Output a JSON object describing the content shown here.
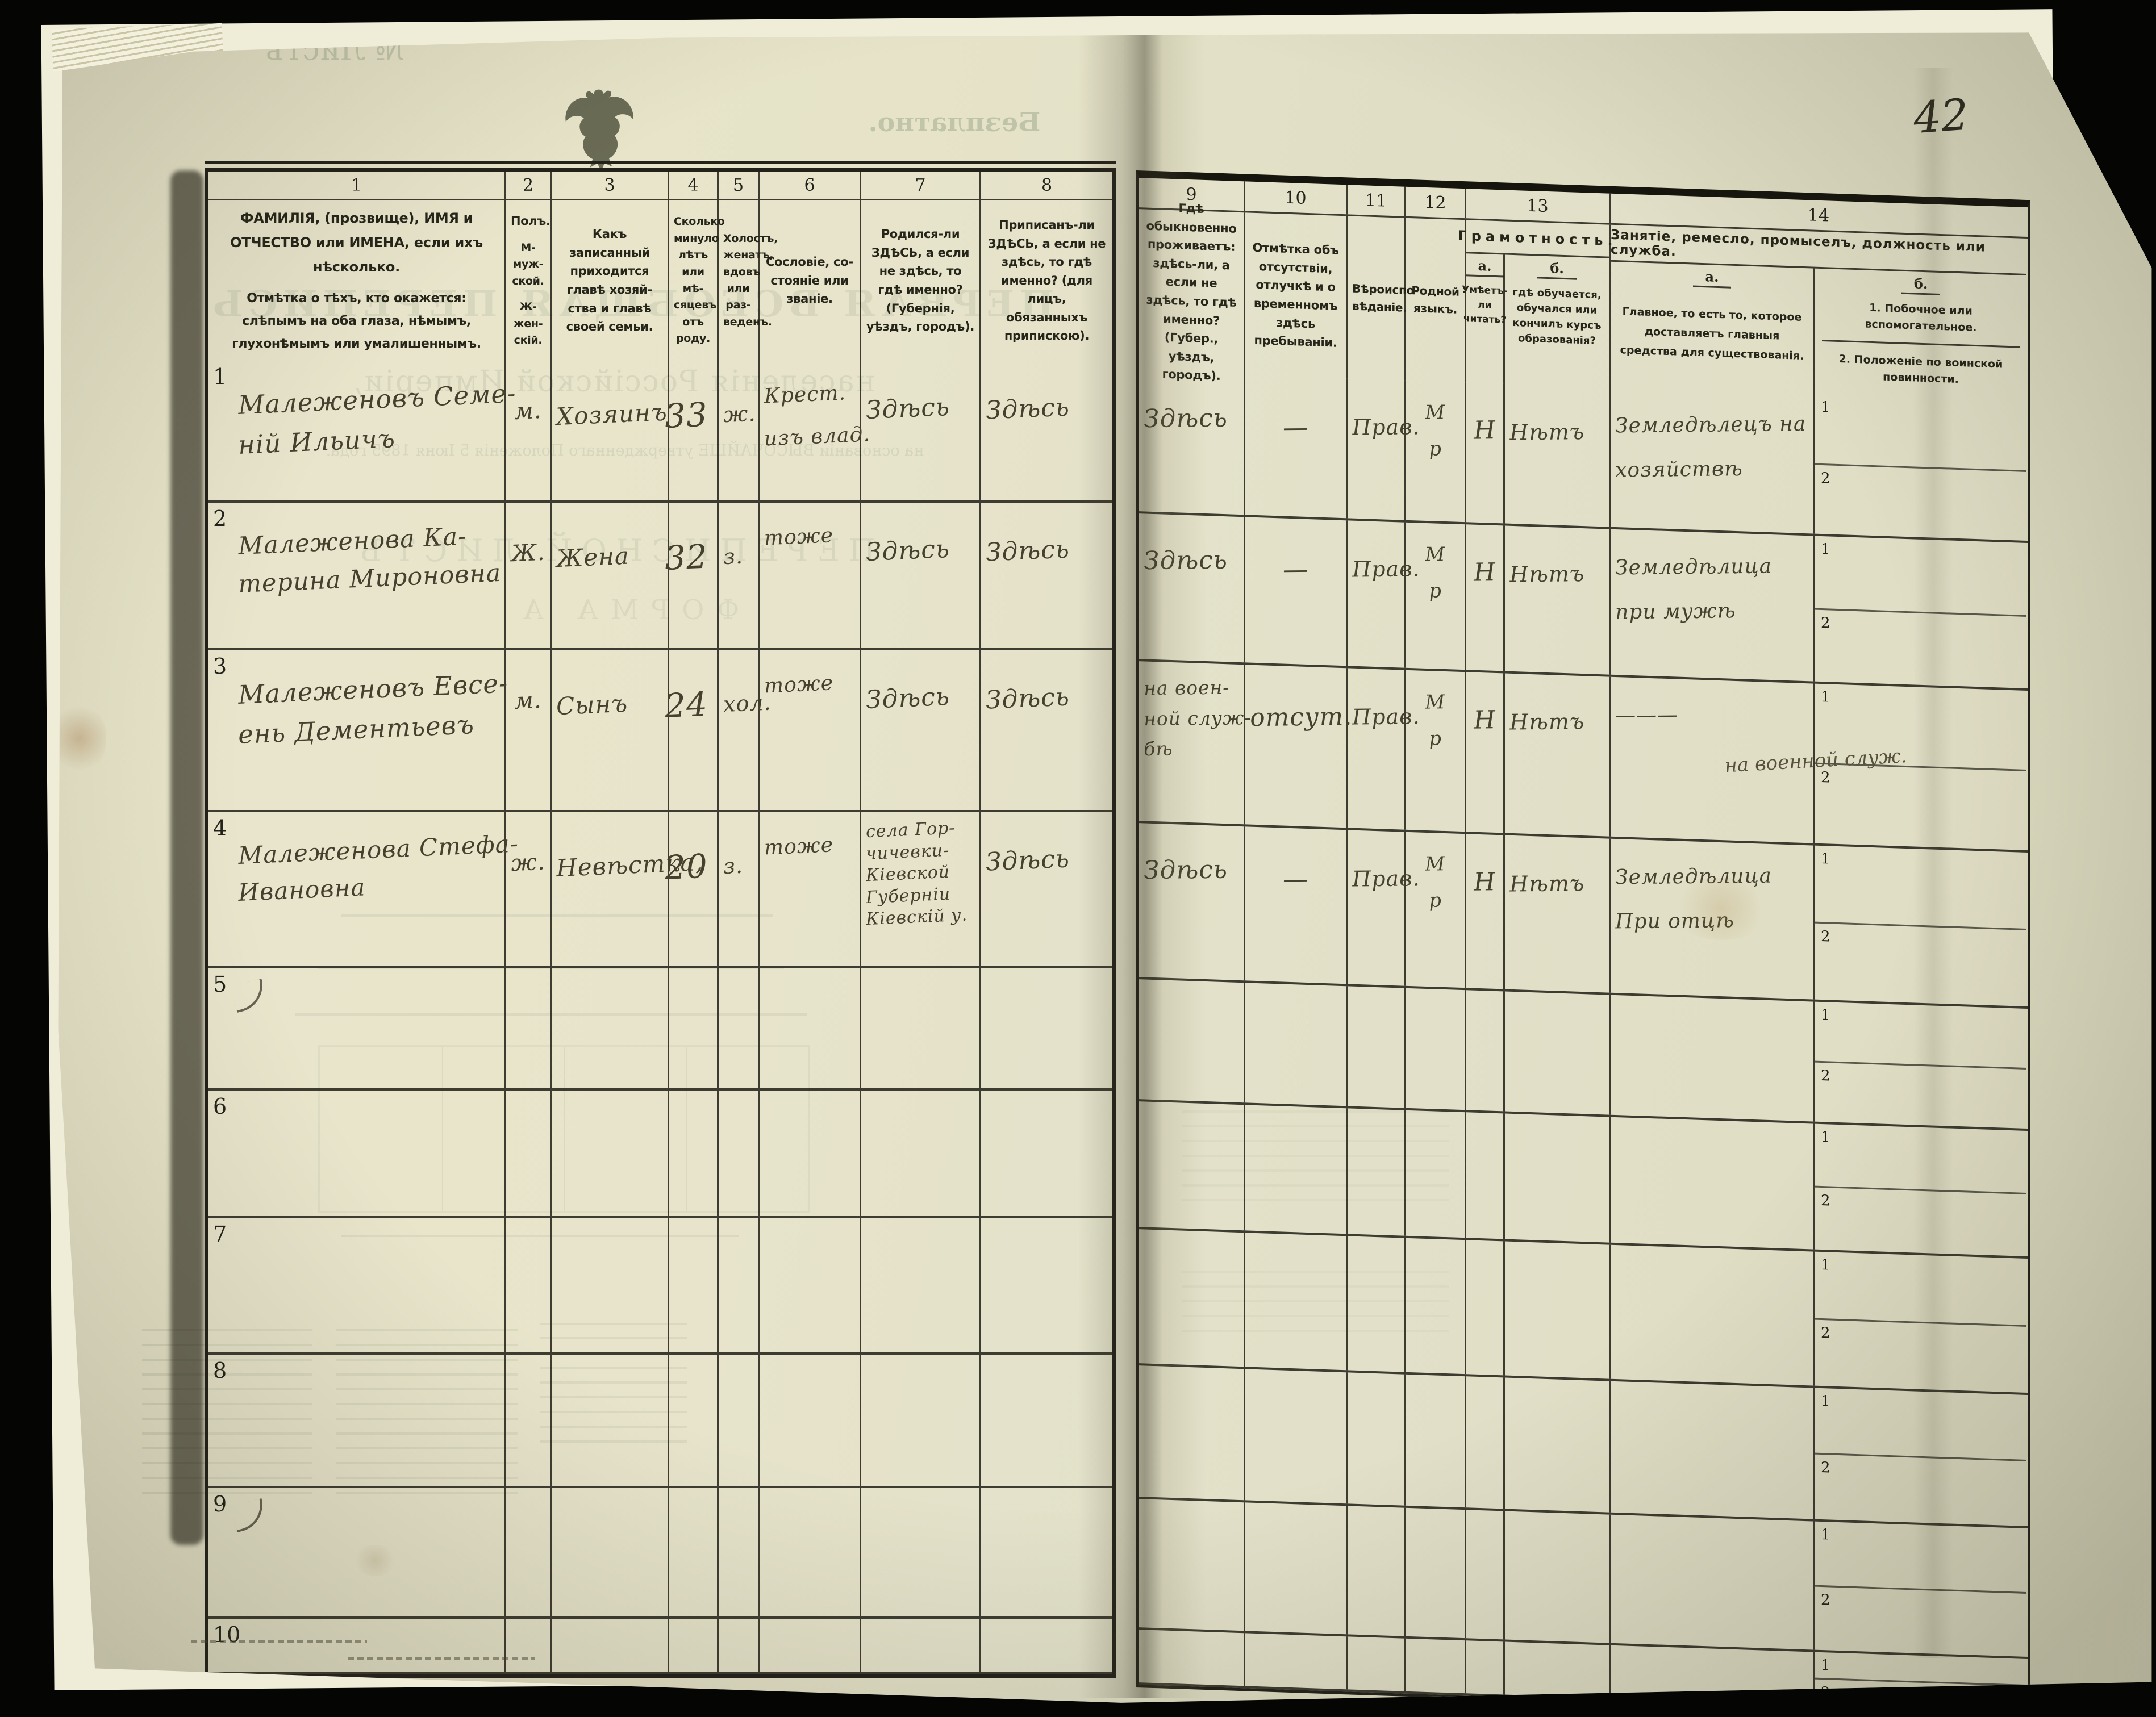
{
  "page": {
    "number": "42"
  },
  "ghost": {
    "free_label": "Безплатно.",
    "sheet_label": "№ Листъ",
    "title1": "ПЕРВАЯ ВСЕОБЩАЯ ПЕРЕПИСЬ",
    "title2": "населенія Россійской Имперіи,",
    "title3": "на основаніи ВЫСОЧАЙШЕ утвержденнаго Положенія 5 Іюня 1895 года.",
    "title4": "ПЕРЕПИСНОЙ ЛИСТЪ",
    "title5": "ФОРМА А"
  },
  "table": {
    "col_numbers": [
      "1",
      "2",
      "3",
      "4",
      "5",
      "6",
      "7",
      "8",
      "9",
      "10",
      "11",
      "12",
      "13",
      "14"
    ],
    "sub1": "1",
    "sub2": "2",
    "headers": {
      "c1": "ФАМИЛІЯ, (прозвище), ИМЯ и ОТЧЕСТВО или ИМЕНА, если ихъ нѣсколько.",
      "c1b": "Отмѣтка о тѣхъ, кто окажется: слѣпымъ на оба глаза, нѣмымъ, глухонѣмымъ или умалишеннымъ.",
      "c2": [
        "Полъ.",
        "М-муж-ской.",
        "Ж-жен-скій."
      ],
      "c3": "Какъ записанный при­ходится главѣ хозяй­ства и главѣ своей семьи.",
      "c4": "Сколько минуло лѣтъ или мѣ­сяцевъ отъ роду.",
      "c5": "Холостъ, женатъ, вдовъ или раз­веденъ.",
      "c6": "Сословіе, со­стояніе или зва­ніе.",
      "c7": "Родился-ли ЗДѢСЬ, а если не здѣсь, то гдѣ именно? (Губернія, уѣздъ, городъ).",
      "c8": "Приписанъ-ли ЗДѢСЬ, а если не здѣсь, то гдѣ именно? (для лицъ, обязанныхъ припискою).",
      "c9": "Гдѣ обыкновенно проживаетъ: здѣсь-ли, а если не здѣсь, то гдѣ именно? (Губер., уѣздъ, городъ).",
      "c10": "Отмѣтка объ отсутствіи, отлучкѣ и о временномъ здѣсь пребыва­ніи.",
      "c11": "Вѣроиспо­вѣданіе.",
      "c12": "Родной языкъ.",
      "c13": "Грамотность.",
      "c13a_label": "а.",
      "c13b_label": "б.",
      "c13a": "Умѣетъ-ли читать?",
      "c13b": "гдѣ обучается, обучался или кончилъ курсъ образованія?",
      "c14": "Занятіе, ремесло, промыселъ, должность или служба.",
      "c14a_label": "а.",
      "c14b_label": "б.",
      "c14a": "Главное, то есть то, которое доставляетъ главныя средства для существованія.",
      "c14b1": "1. Побочное или вспомогательное.",
      "c14b2": "2. Положеніе по воинской повинности."
    }
  },
  "rows": [
    {
      "num": "1",
      "flick": false,
      "name": [
        "Малеженовъ Семе-",
        "ній Ильичъ"
      ],
      "sex": "м.",
      "relation": [
        "Хозяинъ"
      ],
      "age": "33",
      "marital": "ж.",
      "estate": [
        "Крест.",
        "изъ влад."
      ],
      "born": [
        "Здѣсь"
      ],
      "registered": [
        "Здѣсь"
      ],
      "resides": [
        "Здѣсь"
      ],
      "absence": "—",
      "religion": "Прав.",
      "language": [
        "М",
        "р"
      ],
      "literate": "Н",
      "educated": [
        "Нѣтъ"
      ],
      "occ_main": [
        "Земледѣлецъ на",
        "хозяйствѣ"
      ],
      "military": ""
    },
    {
      "num": "2",
      "flick": false,
      "name": [
        "Малеженова Ка-",
        "терина Мироновна"
      ],
      "sex": "Ж.",
      "relation": [
        "Жена"
      ],
      "age": "32",
      "marital": "з.",
      "estate": [
        "тоже"
      ],
      "born": [
        "Здѣсь"
      ],
      "registered": [
        "Здѣсь"
      ],
      "resides": [
        "Здѣсь"
      ],
      "absence": "—",
      "religion": "Прав.",
      "language": [
        "М",
        "р"
      ],
      "literate": "Н",
      "educated": [
        "Нѣтъ"
      ],
      "occ_main": [
        "Земледѣлица",
        "при мужѣ"
      ],
      "military": ""
    },
    {
      "num": "3",
      "flick": false,
      "name": [
        "Малеженовъ Евсе-",
        "ень Дементьевъ"
      ],
      "sex": "м.",
      "relation": [
        "Сынъ"
      ],
      "age": "24",
      "marital": "хол.",
      "estate": [
        "тоже"
      ],
      "born": [
        "Здѣсь"
      ],
      "registered": [
        "Здѣсь"
      ],
      "resides": [
        "на воен-",
        "ной служ-",
        "бѣ"
      ],
      "absence": "отсут.",
      "religion": "Прав.",
      "language": [
        "М",
        "р"
      ],
      "literate": "Н",
      "educated": [
        "Нѣтъ"
      ],
      "occ_main": [
        "———"
      ],
      "military": "на военной служ."
    },
    {
      "num": "4",
      "flick": false,
      "name": [
        "Малеженова Стефа-",
        "Ивановна"
      ],
      "sex": "ж.",
      "relation": [
        "Невѣстка,"
      ],
      "age": "20",
      "marital": "з.",
      "estate": [
        "тоже"
      ],
      "born": [
        "села Гор-",
        "чичевки-",
        "Кіевской",
        "Губерніи",
        "Кіевскій у."
      ],
      "registered": [
        "Здѣсь"
      ],
      "resides": [
        "Здѣсь"
      ],
      "absence": "—",
      "religion": "Прав.",
      "language": [
        "М",
        "р"
      ],
      "literate": "Н",
      "educated": [
        "Нѣтъ"
      ],
      "occ_main": [
        "Земледѣлица",
        "При отцѣ"
      ],
      "military": ""
    },
    {
      "num": "5",
      "flick": true,
      "name": [],
      "sex": "",
      "relation": [],
      "age": "",
      "marital": "",
      "estate": [],
      "born": [],
      "registered": [],
      "resides": [],
      "absence": "",
      "religion": "",
      "language": [],
      "literate": "",
      "educated": [],
      "occ_main": [],
      "military": ""
    },
    {
      "num": "6",
      "flick": false,
      "name": [],
      "sex": "",
      "relation": [],
      "age": "",
      "marital": "",
      "estate": [],
      "born": [],
      "registered": [],
      "resides": [],
      "absence": "",
      "religion": "",
      "language": [],
      "literate": "",
      "educated": [],
      "occ_main": [],
      "military": ""
    },
    {
      "num": "7",
      "flick": false,
      "name": [],
      "sex": "",
      "relation": [],
      "age": "",
      "marital": "",
      "estate": [],
      "born": [],
      "registered": [],
      "resides": [],
      "absence": "",
      "religion": "",
      "language": [],
      "literate": "",
      "educated": [],
      "occ_main": [],
      "military": ""
    },
    {
      "num": "8",
      "flick": false,
      "name": [],
      "sex": "",
      "relation": [],
      "age": "",
      "marital": "",
      "estate": [],
      "born": [],
      "registered": [],
      "resides": [],
      "absence": "",
      "religion": "",
      "language": [],
      "literate": "",
      "educated": [],
      "occ_main": [],
      "military": ""
    },
    {
      "num": "9",
      "flick": true,
      "name": [],
      "sex": "",
      "relation": [],
      "age": "",
      "marital": "",
      "estate": [],
      "born": [],
      "registered": [],
      "resides": [],
      "absence": "",
      "religion": "",
      "language": [],
      "literate": "",
      "educated": [],
      "occ_main": [],
      "military": ""
    },
    {
      "num": "10",
      "flick": false,
      "name": [],
      "sex": "",
      "relation": [],
      "age": "",
      "marital": "",
      "estate": [],
      "born": [],
      "registered": [],
      "resides": [],
      "absence": "",
      "religion": "",
      "language": [],
      "literate": "",
      "educated": [],
      "occ_main": [],
      "military": ""
    }
  ]
}
